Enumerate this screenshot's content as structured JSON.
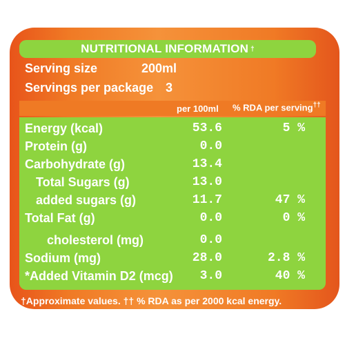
{
  "header": {
    "title": "NUTRITIONAL INFORMATION",
    "title_mark": "†"
  },
  "serving": {
    "size_label": "Serving size",
    "size_value": "200ml",
    "per_package_label": "Servings per package",
    "per_package_value": "3"
  },
  "columns": {
    "per100": "per 100ml",
    "rda": "% RDA per serving",
    "rda_mark": "††"
  },
  "rows": [
    {
      "name": "Energy (kcal)",
      "per100": "53.6",
      "rda": "5 %"
    },
    {
      "name": "Protein (g)",
      "per100": "0.0",
      "rda": ""
    },
    {
      "name": "Carbohydrate (g)",
      "per100": "13.4",
      "rda": ""
    },
    {
      "name": "Total Sugars (g)",
      "per100": "13.0",
      "rda": ""
    },
    {
      "name": "added sugars (g)",
      "per100": "11.7",
      "rda": "47 %"
    },
    {
      "name": "Total Fat (g)",
      "per100": "0.0",
      "rda": "0 %"
    },
    {
      "name": "cholesterol (mg)",
      "per100": "0.0",
      "rda": ""
    },
    {
      "name": "Sodium (mg)",
      "per100": "28.0",
      "rda": "2.8 %"
    },
    {
      "name": "*Added Vitamin D2 (mcg)",
      "per100": "3.0",
      "rda": "40 %"
    }
  ],
  "footer": {
    "note": "†Approximate values. †† % RDA as per 2000 kcal energy."
  }
}
